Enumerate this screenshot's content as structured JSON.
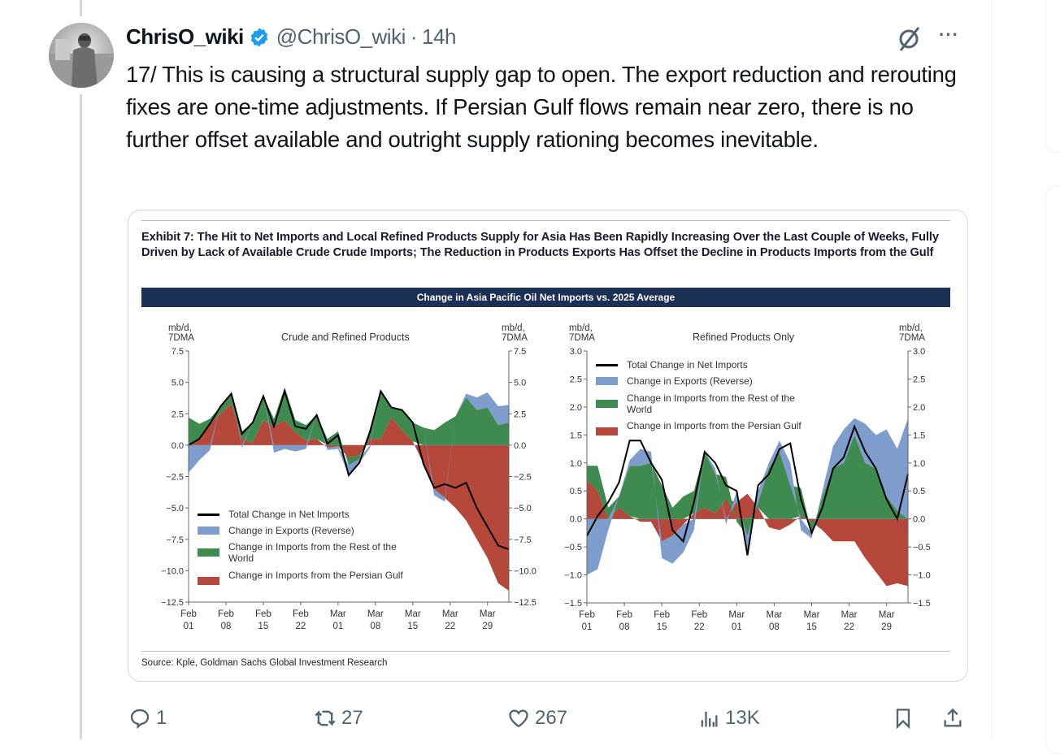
{
  "tweet": {
    "display_name": "ChrisO_wiki",
    "handle": "@ChrisO_wiki",
    "separator": "·",
    "time": "14h",
    "more_label": "···",
    "text": "17/ This is causing a structural supply gap to open. The export reduction and rerouting fixes are one-time adjustments. If Persian Gulf flows remain near zero, there is no further offset available and outright supply rationing becomes inevitable."
  },
  "card": {
    "exhibit_title": "Exhibit 7: The Hit to Net Imports and Local Refined Products Supply for Asia Has Been Rapidly Increasing Over the Last Couple of Weeks, Fully Driven by Lack of Available Crude Crude Imports; The Reduction in Products Exports Has Offset the Decline in Products Imports from the Gulf",
    "banner": "Change in Asia Pacific Oil Net Imports vs. 2025 Average",
    "source": "Source: Kple, Goldman Sachs Global Investment Research"
  },
  "actions": {
    "replies": "1",
    "reposts": "27",
    "likes": "267",
    "views": "13K"
  },
  "colors": {
    "gulf": "#b5473b",
    "row": "#3e8a4f",
    "exports": "#7f9dcc",
    "total": "#000000",
    "banner": "#1c2f55",
    "verified": "#1d9bf0",
    "muted": "#536471"
  },
  "chart_data": [
    {
      "type": "area",
      "title": "Crude and Refined Products",
      "ylabel_left": "mb/d,\n7DMA",
      "ylabel_right": "mb/d,\n7DMA",
      "ylim": [
        -12.5,
        7.5
      ],
      "yticks": [
        "7.5",
        "5.0",
        "2.5",
        "0.0",
        "-2.5",
        "-5.0",
        "-7.5",
        "-10.0",
        "-12.5"
      ],
      "ytick_values": [
        7.5,
        5,
        2.5,
        0,
        -2.5,
        -5,
        -7.5,
        -10,
        -12.5
      ],
      "xlim_days": [
        0,
        60
      ],
      "xticks": [
        [
          "Feb",
          "01"
        ],
        [
          "Feb",
          "08"
        ],
        [
          "Feb",
          "15"
        ],
        [
          "Feb",
          "22"
        ],
        [
          "Mar",
          "01"
        ],
        [
          "Mar",
          "08"
        ],
        [
          "Mar",
          "15"
        ],
        [
          "Mar",
          "22"
        ],
        [
          "Mar",
          "29"
        ]
      ],
      "xtick_days": [
        0,
        7,
        14,
        21,
        28,
        35,
        42,
        49,
        56
      ],
      "legend": [
        "Total Change in Net Imports",
        "Change in Exports (Reverse)",
        "Change in Imports from the Rest of the World",
        "Change in Imports from the Persian Gulf"
      ],
      "legend_placement": "lower-left",
      "days": [
        0,
        2,
        4,
        6,
        8,
        10,
        12,
        14,
        16,
        18,
        20,
        22,
        24,
        26,
        28,
        30,
        32,
        34,
        36,
        38,
        40,
        42,
        44,
        46,
        48,
        50,
        52,
        54,
        56,
        58,
        60
      ],
      "series": [
        {
          "name": "Change in Imports from the Persian Gulf",
          "key": "gulf",
          "values": [
            0,
            0.5,
            1.8,
            2.5,
            3.3,
            0.5,
            0.2,
            2.0,
            1.5,
            2.0,
            1.0,
            0.4,
            0.5,
            -0.2,
            -0.1,
            -1.0,
            -0.8,
            0.5,
            0.5,
            2.2,
            1.2,
            0.3,
            -1.5,
            -3.5,
            -4.2,
            -5.0,
            -6.0,
            -7.5,
            -9.0,
            -11.0,
            -11.6
          ]
        },
        {
          "name": "Change in Imports from the Rest of the World",
          "key": "row",
          "values": [
            2.2,
            1.2,
            0.3,
            0.6,
            0.8,
            0.6,
            1.6,
            1.9,
            0.6,
            2.6,
            1.0,
            1.2,
            1.9,
            0.5,
            1.1,
            -0.6,
            -0.3,
            0.8,
            3.8,
            0.8,
            1.6,
            1.5,
            1.4,
            1.2,
            1.8,
            2.3,
            3.8,
            2.8,
            3.0,
            1.6,
            1.8
          ]
        },
        {
          "name": "Change in Exports (Reverse)",
          "key": "exports",
          "values": [
            -2.2,
            -1.2,
            -0.4,
            0,
            0,
            -0.2,
            0,
            0,
            -0.6,
            -0.3,
            -0.5,
            -0.3,
            0,
            -0.2,
            -0.2,
            -0.8,
            -0.3,
            -0.2,
            0,
            0,
            0,
            0,
            0,
            -0.5,
            -0.3,
            0,
            0.3,
            1.0,
            1.2,
            1.5,
            1.4
          ]
        },
        {
          "name": "Total Change in Net Imports",
          "key": "total",
          "values": [
            0,
            0.5,
            1.7,
            3.1,
            4.1,
            0.9,
            1.8,
            3.9,
            1.5,
            4.3,
            1.5,
            1.3,
            2.4,
            0.1,
            0.8,
            -2.4,
            -1.4,
            1.1,
            4.3,
            3.0,
            2.8,
            1.8,
            -1.5,
            -3.4,
            -3.1,
            -3.4,
            -3.0,
            -5.0,
            -6.5,
            -8.0,
            -8.3
          ]
        }
      ]
    },
    {
      "type": "area",
      "title": "Refined Products Only",
      "ylabel_left": "mb/d,\n7DMA",
      "ylabel_right": "mb/d,\n7DMA",
      "ylim": [
        -1.5,
        3.0
      ],
      "yticks": [
        "3.0",
        "2.5",
        "2.0",
        "1.5",
        "1.0",
        "0.5",
        "0.0",
        "-0.5",
        "-1.0",
        "-1.5"
      ],
      "ytick_values": [
        3,
        2.5,
        2,
        1.5,
        1,
        0.5,
        0,
        -0.5,
        -1,
        -1.5
      ],
      "xlim_days": [
        0,
        60
      ],
      "xticks": [
        [
          "Feb",
          "01"
        ],
        [
          "Feb",
          "08"
        ],
        [
          "Feb",
          "15"
        ],
        [
          "Feb",
          "22"
        ],
        [
          "Mar",
          "01"
        ],
        [
          "Mar",
          "08"
        ],
        [
          "Mar",
          "15"
        ],
        [
          "Mar",
          "22"
        ],
        [
          "Mar",
          "29"
        ]
      ],
      "xtick_days": [
        0,
        7,
        14,
        21,
        28,
        35,
        42,
        49,
        56
      ],
      "legend": [
        "Total Change in Net Imports",
        "Change in Exports (Reverse)",
        "Change in Imports from the Rest of the World",
        "Change in Imports from the Persian Gulf"
      ],
      "legend_placement": "top-left",
      "days": [
        0,
        2,
        4,
        6,
        8,
        10,
        12,
        14,
        16,
        18,
        20,
        22,
        24,
        26,
        28,
        30,
        32,
        34,
        36,
        38,
        40,
        42,
        44,
        46,
        48,
        50,
        52,
        54,
        56,
        58,
        60
      ],
      "series": [
        {
          "name": "Change in Imports from the Persian Gulf",
          "key": "gulf",
          "values": [
            0.7,
            0.5,
            0,
            0.2,
            0.05,
            -0.05,
            -0.05,
            -0.4,
            -0.3,
            -0.1,
            0.1,
            0.2,
            0.1,
            0.35,
            0.3,
            0.45,
            0.2,
            -0.15,
            -0.2,
            -0.1,
            0.05,
            -0.05,
            -0.2,
            -0.4,
            -0.4,
            -0.4,
            -0.7,
            -0.95,
            -1.2,
            -1.15,
            -1.2
          ]
        },
        {
          "name": "Change in Imports from the Rest of the World",
          "key": "row",
          "values": [
            0.25,
            0.45,
            0.2,
            0.2,
            0.9,
            0.95,
            1.0,
            0.6,
            0.2,
            0.4,
            0.4,
            1.0,
            0.7,
            0.4,
            -0.05,
            -0.3,
            0.1,
            0.9,
            1.2,
            0.6,
            0.5,
            -0.2,
            0.4,
            0.9,
            1.0,
            1.5,
            1.0,
            0.9,
            0.4,
            0.15,
            0
          ]
        },
        {
          "name": "Change in Exports (Reverse)",
          "key": "exports",
          "values": [
            -1.0,
            -0.9,
            -0.2,
            0,
            0.1,
            0.3,
            0.2,
            -0.3,
            -0.5,
            -0.5,
            -0.2,
            0,
            0.1,
            -0.1,
            0.2,
            -0.3,
            0.2,
            0.1,
            0.2,
            0.4,
            -0.2,
            -0.1,
            0.1,
            0.4,
            0.6,
            0.3,
            0.7,
            0.6,
            1.2,
            1.1,
            1.8
          ]
        },
        {
          "name": "Total Change in Net Imports",
          "key": "total",
          "values": [
            -0.3,
            0.05,
            0.3,
            0.65,
            1.4,
            1.4,
            1.0,
            0.7,
            -0.2,
            -0.4,
            0.3,
            1.2,
            1.0,
            0.6,
            0.5,
            -0.65,
            0.6,
            0.8,
            1.25,
            1.35,
            0.35,
            -0.25,
            0.2,
            0.9,
            1.1,
            1.65,
            1.2,
            0.9,
            0.35,
            0.0,
            0.8
          ]
        }
      ]
    }
  ]
}
